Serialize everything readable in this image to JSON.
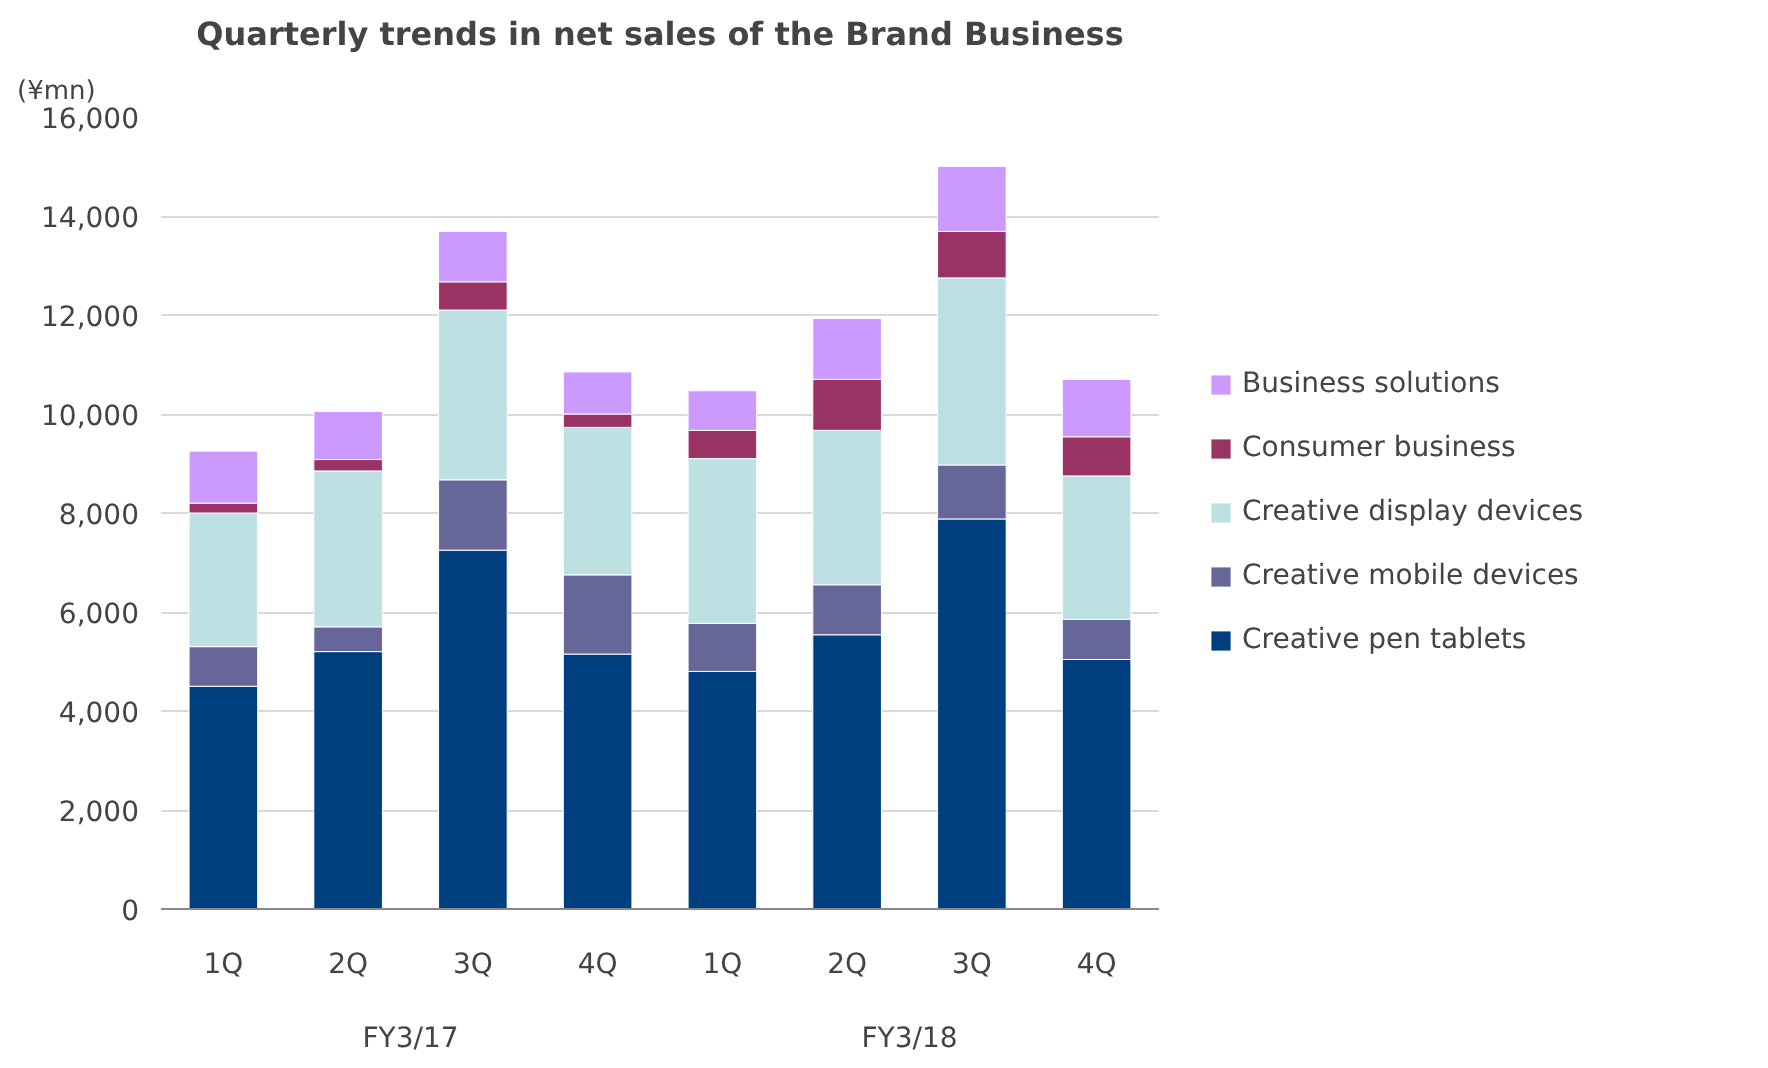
{
  "chart_data": {
    "type": "bar",
    "stacked": true,
    "title": "Quarterly trends in net sales of the Brand Business",
    "ylabel": "(¥mn)",
    "categories": [
      "1Q",
      "2Q",
      "3Q",
      "4Q",
      "1Q",
      "2Q",
      "3Q",
      "4Q"
    ],
    "annotations": [
      "FY3/17",
      "FY3/18"
    ],
    "series": [
      {
        "name": "Creative pen tablets",
        "color": "#003f7f",
        "values": [
          4500,
          5200,
          7250,
          5150,
          4800,
          5540,
          7880,
          5040
        ]
      },
      {
        "name": "Creative mobile devices",
        "color": "#666699",
        "values": [
          800,
          500,
          1420,
          1600,
          970,
          1010,
          1090,
          810
        ]
      },
      {
        "name": "Creative display devices",
        "color": "#bde1e3",
        "values": [
          2700,
          3150,
          3430,
          2980,
          3330,
          3120,
          3780,
          2900
        ]
      },
      {
        "name": "Consumer business",
        "color": "#993366",
        "values": [
          200,
          230,
          570,
          270,
          570,
          1030,
          940,
          790
        ]
      },
      {
        "name": "Business solutions",
        "color": "#cc99ff",
        "values": [
          1050,
          970,
          1020,
          850,
          800,
          1230,
          1310,
          1160
        ]
      }
    ],
    "ylim": [
      0,
      16000
    ],
    "yticks": [
      {
        "value": 0,
        "label": "0"
      },
      {
        "value": 2000,
        "label": "2,000"
      },
      {
        "value": 4000,
        "label": "4,000"
      },
      {
        "value": 6000,
        "label": "6,000"
      },
      {
        "value": 8000,
        "label": "8,000"
      },
      {
        "value": 10000,
        "label": "10,000"
      },
      {
        "value": 12000,
        "label": "12,000"
      },
      {
        "value": 14000,
        "label": "14,000"
      },
      {
        "value": 16000,
        "label": "16,000"
      }
    ],
    "grid": "y",
    "legend": "right"
  }
}
